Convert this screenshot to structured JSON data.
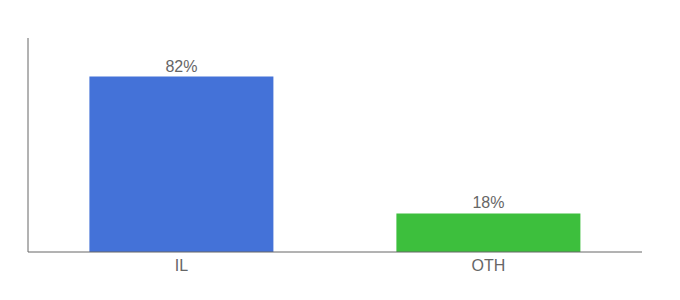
{
  "chart_data": {
    "type": "bar",
    "categories": [
      "IL",
      "OTH"
    ],
    "values": [
      82,
      18
    ],
    "colors": [
      "#4472d8",
      "#3dbf3d"
    ],
    "value_labels": [
      "82%",
      "18%"
    ],
    "data_labels": true,
    "ylim": [
      0,
      100
    ],
    "tick_labels": "x",
    "grid": false
  }
}
